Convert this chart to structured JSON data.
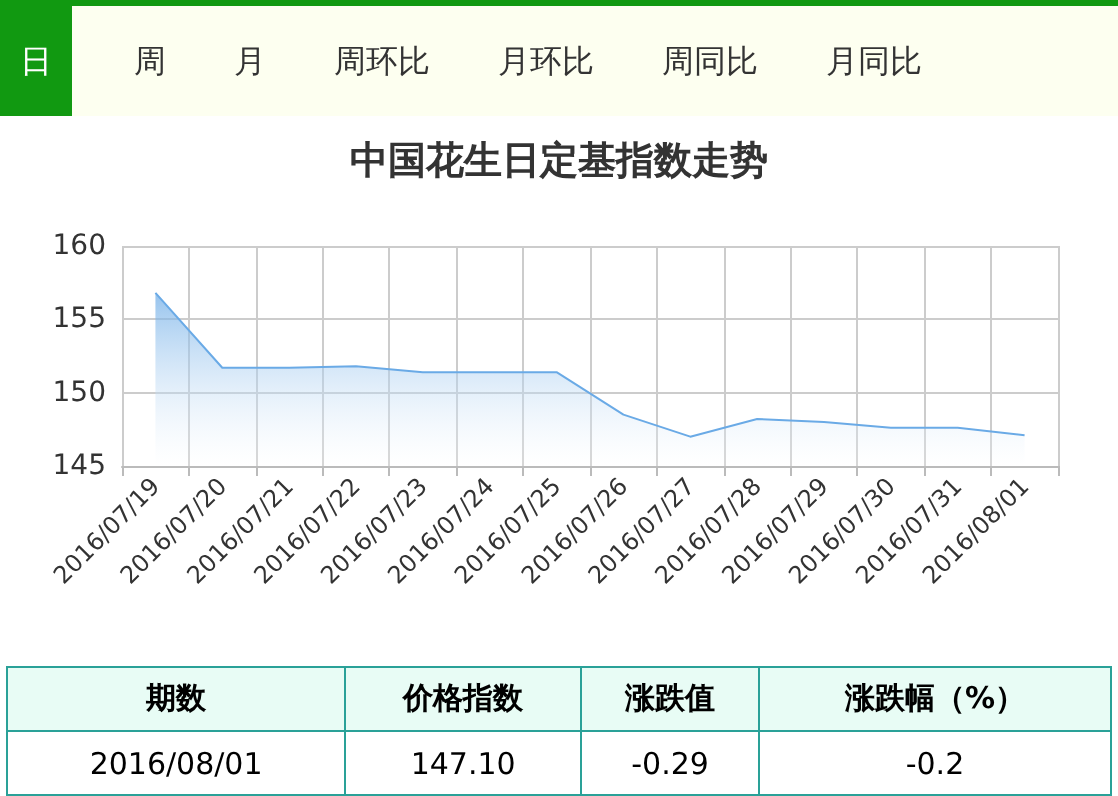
{
  "chart_data": {
    "type": "area",
    "title": "中国花生日定基指数走势",
    "categories": [
      "2016/07/19",
      "2016/07/20",
      "2016/07/21",
      "2016/07/22",
      "2016/07/23",
      "2016/07/24",
      "2016/07/25",
      "2016/07/26",
      "2016/07/27",
      "2016/07/28",
      "2016/07/29",
      "2016/07/30",
      "2016/07/31",
      "2016/08/01"
    ],
    "series": [
      {
        "color": "#6aaae6",
        "values": [
          156.8,
          151.7,
          151.7,
          151.8,
          151.4,
          151.4,
          151.4,
          148.5,
          147.0,
          148.2,
          148.0,
          147.6,
          147.6,
          147.1
        ]
      }
    ],
    "ylim": [
      145,
      160
    ],
    "yticks": [
      145,
      150,
      155,
      160
    ],
    "grid": true,
    "marker": "none",
    "annotations": [
      "日",
      "周",
      "月",
      "周环比",
      "月环比",
      "周同比",
      "月同比",
      "期数",
      "价格指数",
      "涨跌值",
      "涨跌幅（%）",
      "2016/08/01",
      "147.10",
      "-0.29",
      "-0.2"
    ]
  }
}
